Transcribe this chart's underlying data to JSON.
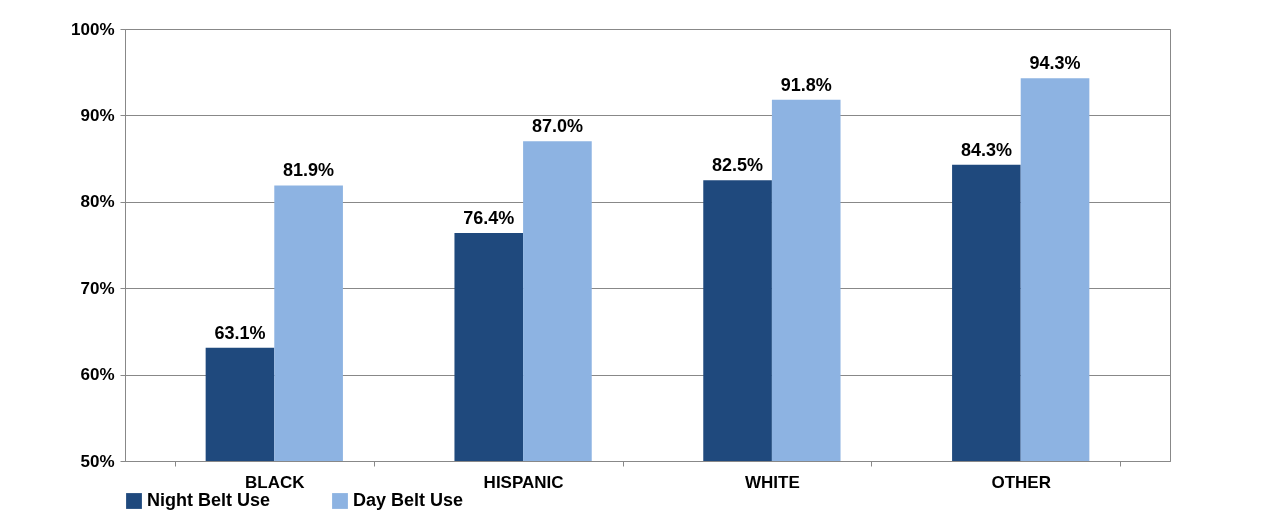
{
  "chart_data": {
    "type": "bar",
    "categories": [
      "BLACK",
      "HISPANIC",
      "WHITE",
      "OTHER"
    ],
    "series": [
      {
        "name": "Night Belt Use",
        "color": "#1f497d",
        "values": [
          63.1,
          76.4,
          82.5,
          84.3
        ],
        "value_labels": [
          "63.1%",
          "76.4%",
          "82.5%",
          "84.3%"
        ]
      },
      {
        "name": "Day Belt Use",
        "color": "#8db3e2",
        "values": [
          81.9,
          87.0,
          91.8,
          94.3
        ],
        "value_labels": [
          "81.9%",
          "87.0%",
          "91.8%",
          "94.3%"
        ]
      }
    ],
    "ylim": [
      50,
      100
    ],
    "yticks": [
      {
        "value": 50,
        "label": "50%"
      },
      {
        "value": 60,
        "label": "60%"
      },
      {
        "value": 70,
        "label": "70%"
      },
      {
        "value": 80,
        "label": "80%"
      },
      {
        "value": 90,
        "label": "90%"
      },
      {
        "value": 100,
        "label": "100%"
      }
    ],
    "grid": "y",
    "legend": "bottom"
  }
}
